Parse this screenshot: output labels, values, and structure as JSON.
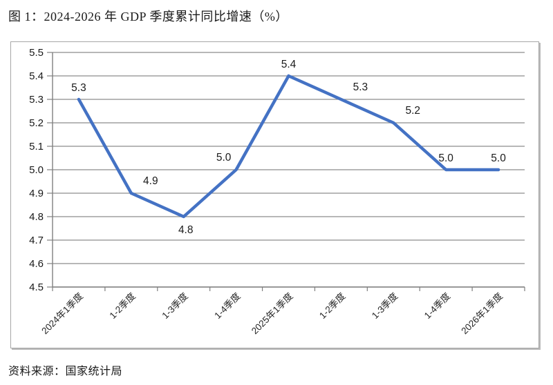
{
  "title": "图 1：2024-2026 年 GDP 季度累计同比增速（%）",
  "source": "资料来源：国家统计局",
  "chart_data": {
    "type": "line",
    "categories": [
      "2024年1季度",
      "1-2季度",
      "1-3季度",
      "1-4季度",
      "2025年1季度",
      "1-2季度",
      "1-3季度",
      "1-4季度",
      "2026年1季度"
    ],
    "values": [
      5.3,
      4.9,
      4.8,
      5.0,
      5.4,
      5.3,
      5.2,
      5.0,
      5.0
    ],
    "data_labels": [
      "5.3",
      "4.9",
      "4.8",
      "5.0",
      "5.4",
      "5.3",
      "5.2",
      "5.0",
      "5.0"
    ],
    "label_placement": [
      "above",
      "above-right",
      "below",
      "above-left",
      "above",
      "above-right",
      "above-right",
      "above",
      "above"
    ],
    "ylim": [
      4.5,
      5.5
    ],
    "ytick_step": 0.1,
    "ytick_labels": [
      "5.5",
      "5.4",
      "5.3",
      "5.2",
      "5.1",
      "5.0",
      "4.9",
      "4.8",
      "4.7",
      "4.6",
      "4.5"
    ],
    "grid": true,
    "legend_position": "none",
    "xlabel": "",
    "ylabel": "",
    "line_color": "#4472C4",
    "grid_color": "#8c8c8c",
    "axis_color": "#7f7f7f",
    "text_color": "#1a1a1a"
  }
}
